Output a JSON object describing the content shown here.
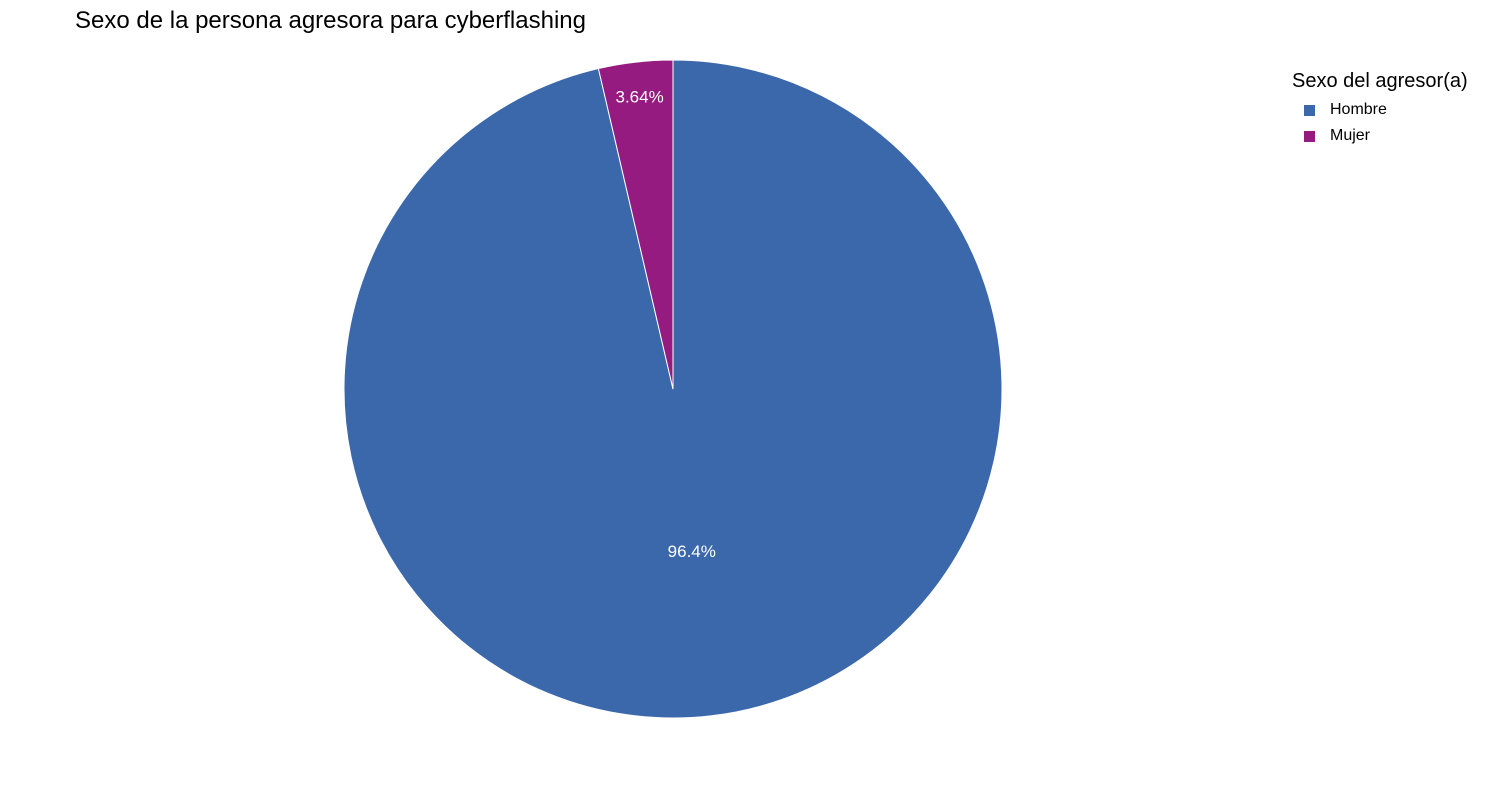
{
  "chart_data": {
    "type": "pie",
    "title": "Sexo de la persona agresora para cyberflashing",
    "legend_title": "Sexo del agresor(a)",
    "legend_position": "top-right",
    "slices": [
      {
        "name": "Hombre",
        "value": 96.36,
        "label": "96.4%",
        "color": "#3b68ab"
      },
      {
        "name": "Mujer",
        "value": 3.64,
        "label": "3.64%",
        "color": "#951b81"
      }
    ],
    "direction": "clockwise",
    "start": "top"
  }
}
